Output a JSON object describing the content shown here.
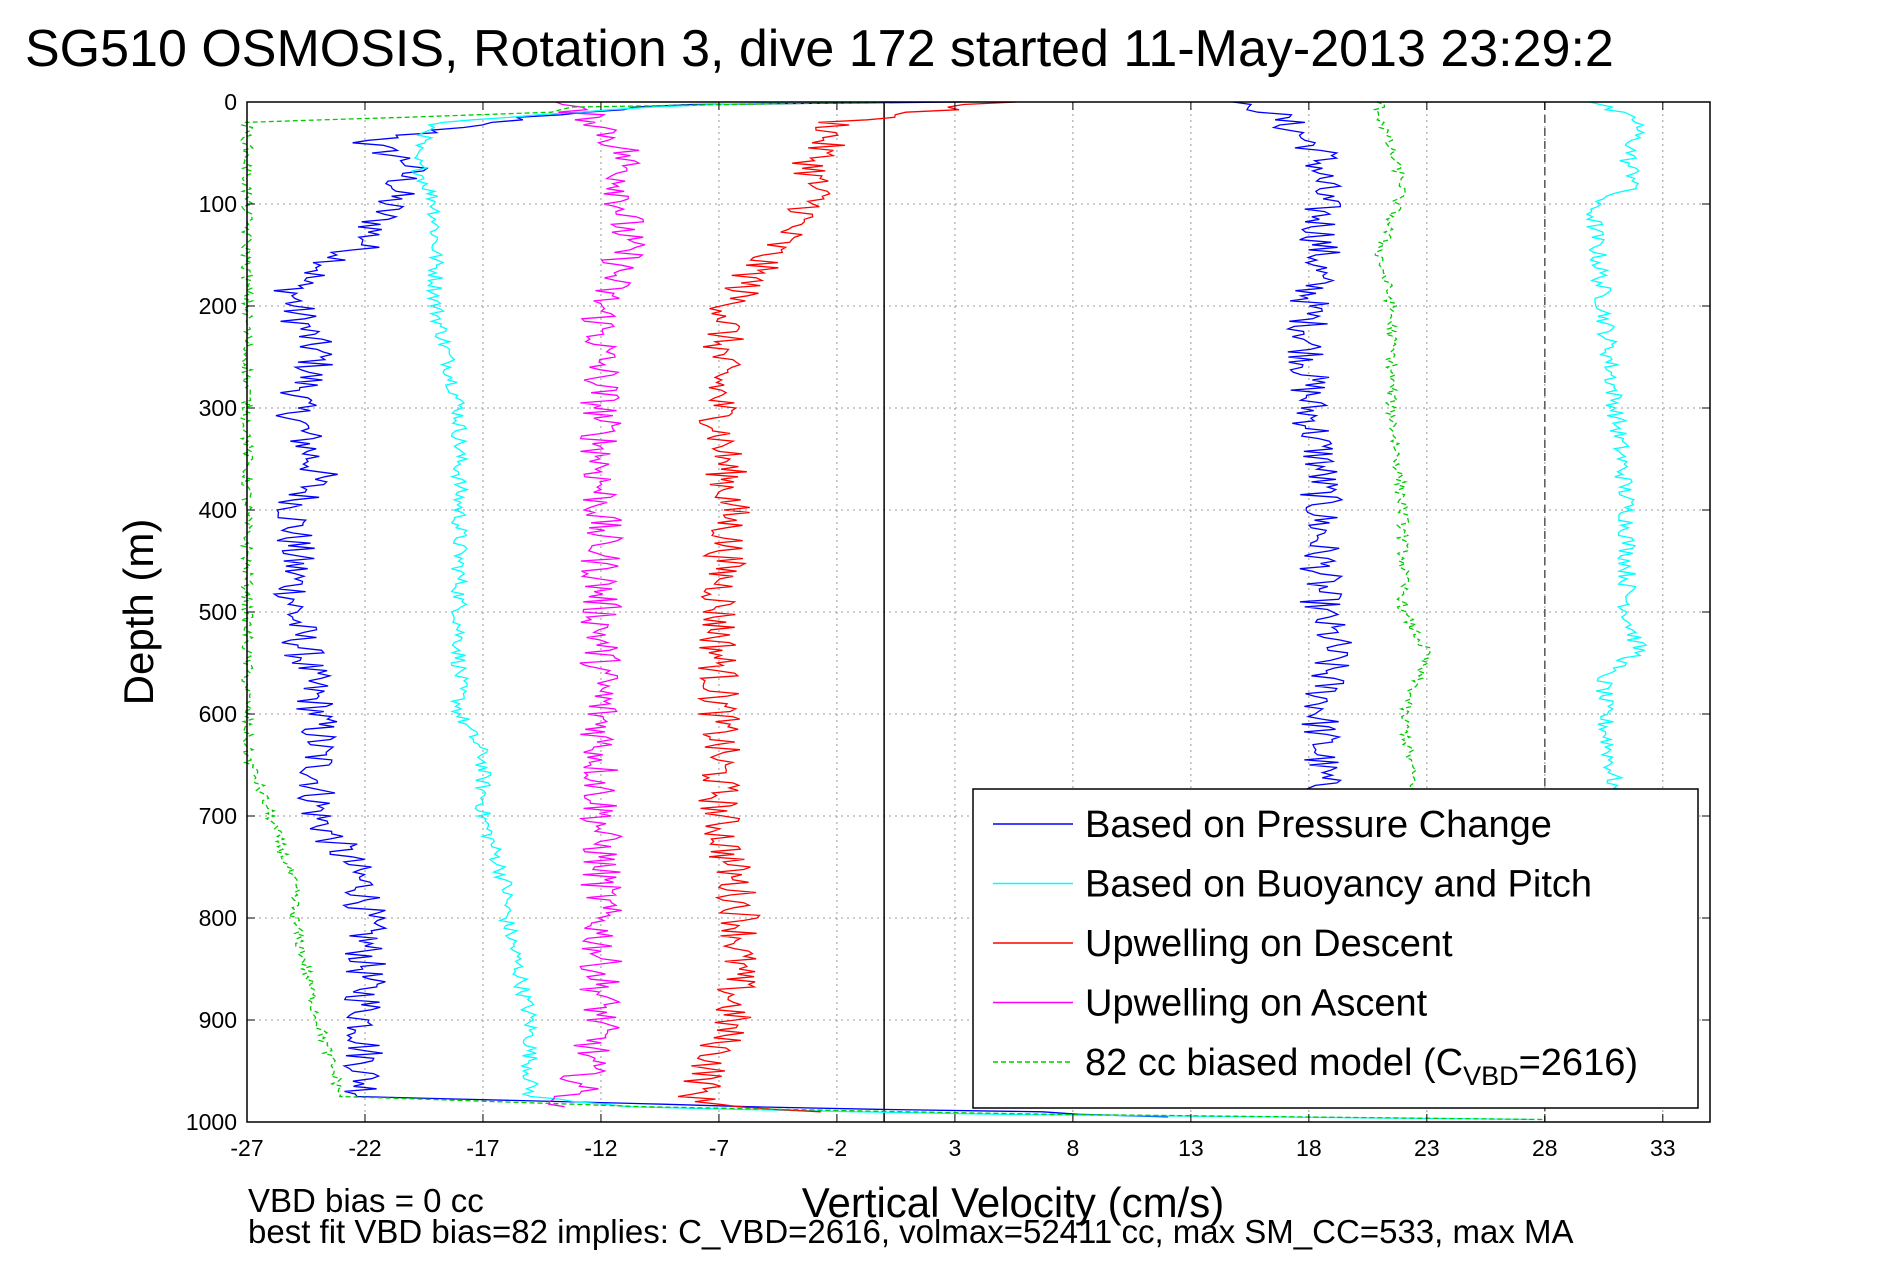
{
  "chart_data": {
    "type": "line",
    "title": "SG510 OSMOSIS, Rotation 3, dive 172 started 11-May-2013 23:29:2",
    "xlabel": "Vertical Velocity (cm/s)",
    "ylabel": "Depth (m)",
    "xlim": [
      -27,
      35
    ],
    "ylim": [
      1000,
      0
    ],
    "y_reversed": true,
    "grid": "dotted",
    "xticks": [
      "-27",
      "-22",
      "-17",
      "-12",
      "-7",
      "-2",
      "3",
      "8",
      "13",
      "18",
      "23",
      "28",
      "33"
    ],
    "yticks": [
      "0",
      "100",
      "200",
      "300",
      "400",
      "500",
      "600",
      "700",
      "800",
      "900",
      "1000"
    ],
    "reference_lines": [
      {
        "x": 0,
        "style": "solid",
        "color": "#000000"
      },
      {
        "x": 28,
        "style": "dashed",
        "color": "#555555"
      }
    ],
    "legend_position": "lower-right",
    "legend": [
      {
        "label": "Based on Pressure Change",
        "series": "pressure",
        "color": "#0000ff",
        "dash": "solid"
      },
      {
        "label": "Based on Buoyancy and Pitch",
        "series": "buoyancy",
        "color": "#00ffff",
        "dash": "solid"
      },
      {
        "label": "Upwelling on Descent",
        "series": "upw_desc",
        "color": "#ff0000",
        "dash": "solid"
      },
      {
        "label": "Upwelling on Ascent",
        "series": "upw_asc",
        "color": "#ff00ff",
        "dash": "solid"
      },
      {
        "label_main": "82 cc biased model (C",
        "label_sub": "VBD",
        "label_tail": "=2616)",
        "series": "model",
        "color": "#00cc00",
        "dash": "dashed"
      }
    ],
    "series": [
      {
        "name": "Based on Pressure Change",
        "key": "pressure",
        "color": "#0000ff",
        "noise": 0.9,
        "depth": [
          0,
          3,
          10,
          20,
          40,
          60,
          100,
          140,
          180,
          200,
          250,
          300,
          365,
          400,
          500,
          600,
          700,
          770,
          800,
          900,
          975,
          985,
          990,
          995
        ],
        "values": [
          3,
          -10,
          -13,
          -17,
          -22,
          -20,
          -21,
          -22,
          -25,
          -25,
          -24,
          -25,
          -24,
          -25,
          -25,
          -24,
          -24,
          -22,
          -22,
          -22,
          -22,
          -5,
          6,
          12
        ]
      },
      {
        "name": "Based on Pressure Change",
        "key": "pressure_asc",
        "color": "#0000ff",
        "noise": 0.9,
        "depth": [
          0,
          5,
          20,
          50,
          100,
          150,
          200,
          250,
          300,
          350,
          400,
          500,
          530,
          600,
          680
        ],
        "values": [
          14,
          16,
          17,
          18.5,
          18.5,
          18.5,
          18,
          18,
          18,
          18.5,
          18.5,
          18.5,
          19,
          18.5,
          18.5
        ]
      },
      {
        "name": "Based on Buoyancy and Pitch",
        "key": "buoyancy",
        "color": "#00ffff",
        "noise": 0.35,
        "depth": [
          0,
          5,
          20,
          50,
          100,
          200,
          300,
          400,
          500,
          600,
          640,
          700,
          770,
          800,
          900,
          975,
          985,
          992,
          998
        ],
        "values": [
          -4,
          -10,
          -19,
          -20,
          -19,
          -19,
          -18,
          -18,
          -18,
          -18,
          -17,
          -17,
          -16,
          -16,
          -15,
          -15,
          -11,
          3,
          30
        ]
      },
      {
        "name": "Based on Buoyancy and Pitch",
        "key": "buoyancy_asc",
        "color": "#00ffff",
        "noise": 0.4,
        "depth": [
          0,
          10,
          20,
          60,
          80,
          100,
          200,
          300,
          400,
          500,
          540,
          560,
          600,
          680
        ],
        "values": [
          30,
          31,
          32,
          31.5,
          32,
          30,
          30.5,
          31,
          31.5,
          31.5,
          32,
          30.5,
          30.5,
          31
        ]
      },
      {
        "name": "Upwelling on Descent",
        "key": "upw_desc",
        "color": "#ff0000",
        "noise": 0.9,
        "depth": [
          0,
          20,
          60,
          100,
          150,
          200,
          250,
          300,
          400,
          500,
          600,
          700,
          800,
          900,
          980,
          990
        ],
        "values": [
          5,
          -2,
          -3,
          -3,
          -5,
          -6.5,
          -7,
          -7,
          -6.5,
          -7,
          -7,
          -7,
          -6,
          -6.5,
          -8,
          -3
        ]
      },
      {
        "name": "Upwelling on Ascent",
        "key": "upw_asc",
        "color": "#ff00ff",
        "noise": 0.9,
        "depth": [
          0,
          20,
          50,
          100,
          150,
          200,
          300,
          400,
          500,
          560,
          600,
          700,
          800,
          900,
          970,
          985
        ],
        "values": [
          -14,
          -12,
          -11,
          -11,
          -11,
          -12,
          -12,
          -12,
          -12,
          -12,
          -12,
          -12,
          -12,
          -12,
          -13,
          -14
        ]
      },
      {
        "name": "82 cc biased model (CVBD=2616)",
        "key": "model",
        "color": "#00cc00",
        "dash": "dashed",
        "noise": 0.25,
        "depth": [
          0,
          5,
          10,
          20,
          100,
          200,
          220,
          360,
          640,
          700,
          770,
          800,
          900,
          975,
          985,
          992,
          998
        ],
        "values": [
          0,
          -13,
          -14,
          -27,
          -27,
          -27,
          -27,
          -27,
          -27,
          -26,
          -25,
          -25,
          -24,
          -23,
          -10,
          5,
          30
        ]
      },
      {
        "name": "82 cc biased model (CVBD=2616)",
        "key": "model_asc",
        "color": "#00cc00",
        "dash": "dashed",
        "noise": 0.25,
        "depth": [
          0,
          10,
          50,
          80,
          150,
          200,
          300,
          400,
          500,
          540,
          600,
          680
        ],
        "values": [
          21,
          21,
          21.5,
          22,
          21,
          21.5,
          21.5,
          22,
          22,
          23,
          22,
          22.5
        ]
      }
    ]
  },
  "footer": {
    "vbd_bias": "VBD bias = 0 cc",
    "best_fit": "best fit VBD bias=82 implies: C_VBD=2616, volmax=52411 cc, max SM_CC=533, max MA"
  }
}
